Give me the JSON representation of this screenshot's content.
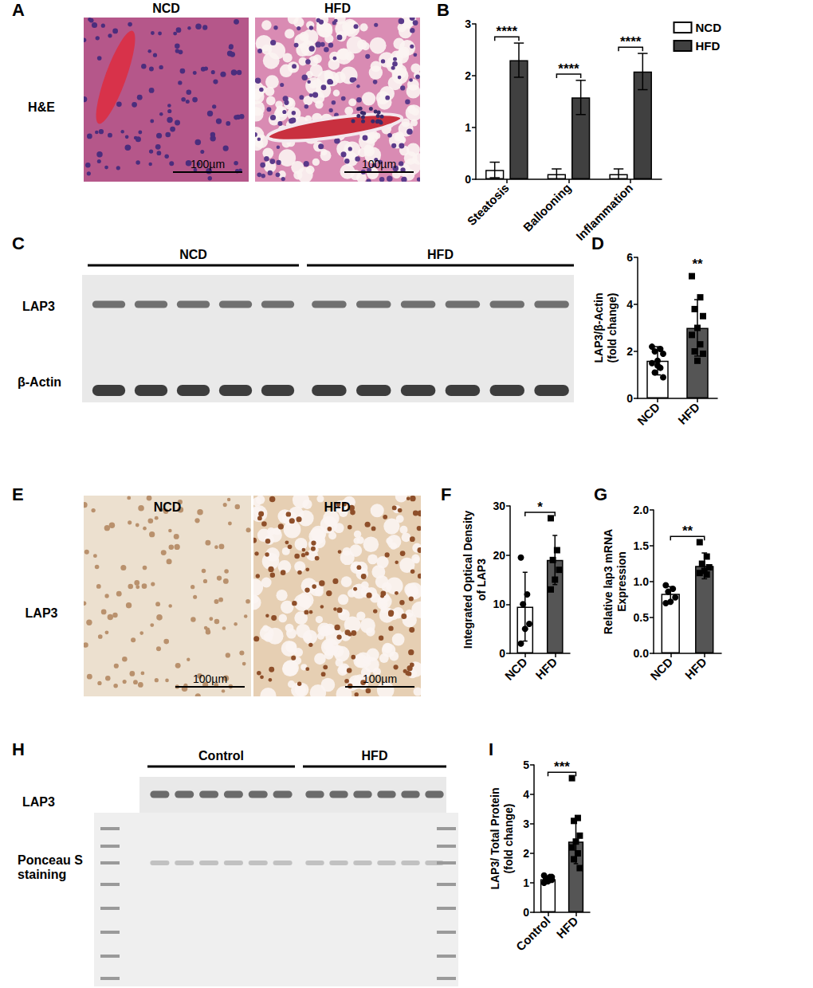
{
  "panels": [
    {
      "panel": "A",
      "type": "image",
      "row_label": "H&E",
      "columns": [
        "NCD",
        "HFD"
      ],
      "scale_bar": "100µm"
    },
    {
      "panel": "C",
      "type": "blot",
      "groups": [
        {
          "label": "NCD",
          "lanes": 5
        },
        {
          "label": "HFD",
          "lanes": 6
        }
      ],
      "rows": [
        "LAP3",
        "β-Actin"
      ]
    },
    {
      "panel": "E",
      "type": "image",
      "row_label": "LAP3",
      "columns": [
        "NCD",
        "HFD"
      ],
      "scale_bar": "100µm"
    },
    {
      "panel": "H",
      "type": "blot",
      "groups": [
        {
          "label": "Control",
          "lanes": 6
        },
        {
          "label": "HFD",
          "lanes": 6
        }
      ],
      "rows": [
        "LAP3",
        "Ponceau S\nstaining"
      ]
    }
  ],
  "chart_data": [
    {
      "panel": "B",
      "type": "bar",
      "categories": [
        "Steatosis",
        "Ballooning",
        "Inflammation"
      ],
      "series": [
        {
          "name": "NCD",
          "color": "#ffffff",
          "values": [
            0.18,
            0.1,
            0.1
          ],
          "errors": [
            0.15,
            0.1,
            0.1
          ]
        },
        {
          "name": "HFD",
          "color": "#404040",
          "values": [
            2.3,
            1.58,
            2.08
          ],
          "errors": [
            0.33,
            0.33,
            0.35
          ]
        }
      ],
      "significance": [
        "****",
        "****",
        "****"
      ],
      "ylim": [
        0,
        3
      ],
      "yticks": [
        0,
        1,
        2,
        3
      ],
      "legend": "top-right",
      "grid": false
    },
    {
      "panel": "D",
      "type": "bar",
      "categories": [
        "NCD",
        "HFD"
      ],
      "values": [
        1.6,
        3.0
      ],
      "errors": [
        0.6,
        1.2
      ],
      "colors": [
        "#ffffff",
        "#555555"
      ],
      "points": [
        {
          "category": "NCD",
          "marker": "circle",
          "values": [
            2.2,
            2.1,
            2.0,
            1.9,
            1.6,
            1.5,
            1.3,
            1.1,
            0.9,
            1.4
          ]
        },
        {
          "category": "HFD",
          "marker": "square",
          "values": [
            5.2,
            4.3,
            3.8,
            3.5,
            3.0,
            2.7,
            2.3,
            2.0,
            1.9,
            1.6
          ]
        }
      ],
      "y_label": "LAP3/β-Actin\n(fold change)",
      "annotations": [
        {
          "text": "**",
          "categories": [
            "HFD"
          ]
        }
      ],
      "ylim": [
        0,
        6
      ],
      "yticks": [
        0,
        2,
        4,
        6
      ],
      "grid": false
    },
    {
      "panel": "F",
      "type": "bar",
      "categories": [
        "NCD",
        "HFD"
      ],
      "values": [
        9.5,
        19
      ],
      "errors": [
        7,
        5
      ],
      "colors": [
        "#ffffff",
        "#555555"
      ],
      "points": [
        {
          "category": "NCD",
          "marker": "circle",
          "values": [
            19.5,
            12,
            10,
            6,
            5,
            2
          ]
        },
        {
          "category": "HFD",
          "marker": "square",
          "values": [
            27.5,
            21,
            19,
            17,
            15,
            13
          ]
        }
      ],
      "y_label": "Integrated Optical Density\nof LAP3",
      "annotations": [
        {
          "text": "*",
          "categories": [
            "NCD",
            "HFD"
          ]
        }
      ],
      "ylim": [
        0,
        30
      ],
      "yticks": [
        0,
        10,
        20,
        30
      ],
      "grid": false
    },
    {
      "panel": "G",
      "type": "bar",
      "categories": [
        "NCD",
        "HFD"
      ],
      "values": [
        0.83,
        1.22
      ],
      "errors": [
        0.1,
        0.18
      ],
      "colors": [
        "#ffffff",
        "#555555"
      ],
      "points": [
        {
          "category": "NCD",
          "marker": "circle",
          "values": [
            0.95,
            0.9,
            0.86,
            0.78,
            0.72,
            0.7
          ]
        },
        {
          "category": "HFD",
          "marker": "square",
          "values": [
            1.55,
            1.35,
            1.25,
            1.2,
            1.15,
            1.12,
            1.1
          ]
        }
      ],
      "y_label": "Relative lap3 mRNA\nExpression",
      "annotations": [
        {
          "text": "**",
          "categories": [
            "NCD",
            "HFD"
          ]
        }
      ],
      "ylim": [
        0,
        2
      ],
      "yticks": [
        {
          "value": 0,
          "label": "0.0"
        },
        {
          "value": 0.5,
          "label": "0.5"
        },
        {
          "value": 1,
          "label": "1.0"
        },
        {
          "value": 1.5,
          "label": "1.5"
        },
        {
          "value": 2,
          "label": "2.0"
        }
      ],
      "grid": false
    },
    {
      "panel": "I",
      "type": "bar",
      "categories": [
        "Control",
        "HFD"
      ],
      "values": [
        1.12,
        2.4
      ],
      "errors": [
        0.1,
        0.75
      ],
      "colors": [
        "#ffffff",
        "#555555"
      ],
      "points": [
        {
          "category": "Control",
          "marker": "circle",
          "values": [
            1.25,
            1.2,
            1.15,
            1.1,
            1.05,
            1.0,
            1.1,
            1.15,
            1.2
          ]
        },
        {
          "category": "HFD",
          "marker": "square",
          "values": [
            4.55,
            3.2,
            3.1,
            2.6,
            2.4,
            2.2,
            2.0,
            1.8,
            1.5
          ]
        }
      ],
      "y_label": "LAP3/ Total Protein\n(fold change)",
      "annotations": [
        {
          "text": "***",
          "categories": [
            "Control",
            "HFD"
          ]
        }
      ],
      "ylim": [
        0,
        5
      ],
      "yticks": [
        0,
        1,
        2,
        3,
        4,
        5
      ],
      "grid": false
    }
  ]
}
